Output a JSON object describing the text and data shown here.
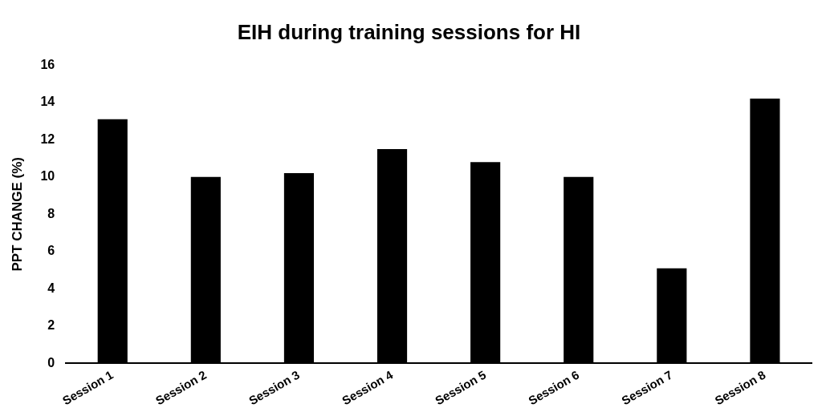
{
  "chart_data": {
    "type": "bar",
    "title": "EIH during training sessions for HI",
    "ylabel": "PPT CHANGE (%)",
    "categories": [
      "Session 1",
      "Session 2",
      "Session 3",
      "Session 4",
      "Session 5",
      "Session 6",
      "Session 7",
      "Session 8"
    ],
    "values": [
      13.1,
      10.0,
      10.2,
      11.5,
      10.8,
      10.0,
      5.1,
      14.2
    ],
    "color": "#000000",
    "ylim": [
      0,
      16
    ],
    "yticks": [
      0,
      2,
      4,
      6,
      8,
      10,
      12,
      14,
      16
    ],
    "grid": false,
    "legend": false
  }
}
